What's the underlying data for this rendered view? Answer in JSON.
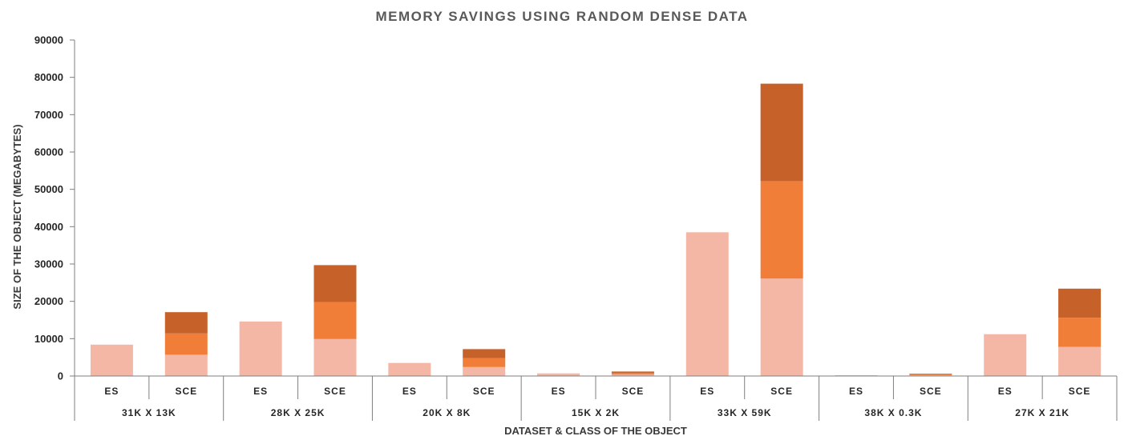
{
  "chart_data": {
    "type": "bar",
    "stacked": true,
    "title": "MEMORY SAVINGS USING RANDOM DENSE DATA",
    "xlabel": "DATASET & CLASS OF THE OBJECT",
    "ylabel": "SIZE OF THE OBJECT (MEGABYTES)",
    "ylim": [
      0,
      90000
    ],
    "yticks": [
      0,
      10000,
      20000,
      30000,
      40000,
      50000,
      60000,
      70000,
      80000,
      90000
    ],
    "grid": false,
    "legend": "none",
    "colors": [
      "#f5b7a5",
      "#f07e38",
      "#c56129"
    ],
    "groups": [
      {
        "label": "31K X 13K",
        "bars": [
          {
            "label": "ES",
            "segments": [
              8400
            ]
          },
          {
            "label": "SCE",
            "segments": [
              5700,
              5700,
              5700
            ]
          }
        ]
      },
      {
        "label": "28K X 25K",
        "bars": [
          {
            "label": "ES",
            "segments": [
              14600
            ]
          },
          {
            "label": "SCE",
            "segments": [
              9900,
              9900,
              9900
            ]
          }
        ]
      },
      {
        "label": "20K X 8K",
        "bars": [
          {
            "label": "ES",
            "segments": [
              3500
            ]
          },
          {
            "label": "SCE",
            "segments": [
              2400,
              2400,
              2400
            ]
          }
        ]
      },
      {
        "label": "15K X 2K",
        "bars": [
          {
            "label": "ES",
            "segments": [
              700
            ]
          },
          {
            "label": "SCE",
            "segments": [
              400,
              400,
              400
            ]
          }
        ]
      },
      {
        "label": "33K X 59K",
        "bars": [
          {
            "label": "ES",
            "segments": [
              38500
            ]
          },
          {
            "label": "SCE",
            "segments": [
              26100,
              26100,
              26100
            ]
          }
        ]
      },
      {
        "label": "38K X 0.3K",
        "bars": [
          {
            "label": "ES",
            "segments": [
              200
            ]
          },
          {
            "label": "SCE",
            "segments": [
              200,
              200,
              200
            ]
          }
        ]
      },
      {
        "label": "27K X 21K",
        "bars": [
          {
            "label": "ES",
            "segments": [
              11200
            ]
          },
          {
            "label": "SCE",
            "segments": [
              7800,
              7800,
              7800
            ]
          }
        ]
      }
    ]
  }
}
